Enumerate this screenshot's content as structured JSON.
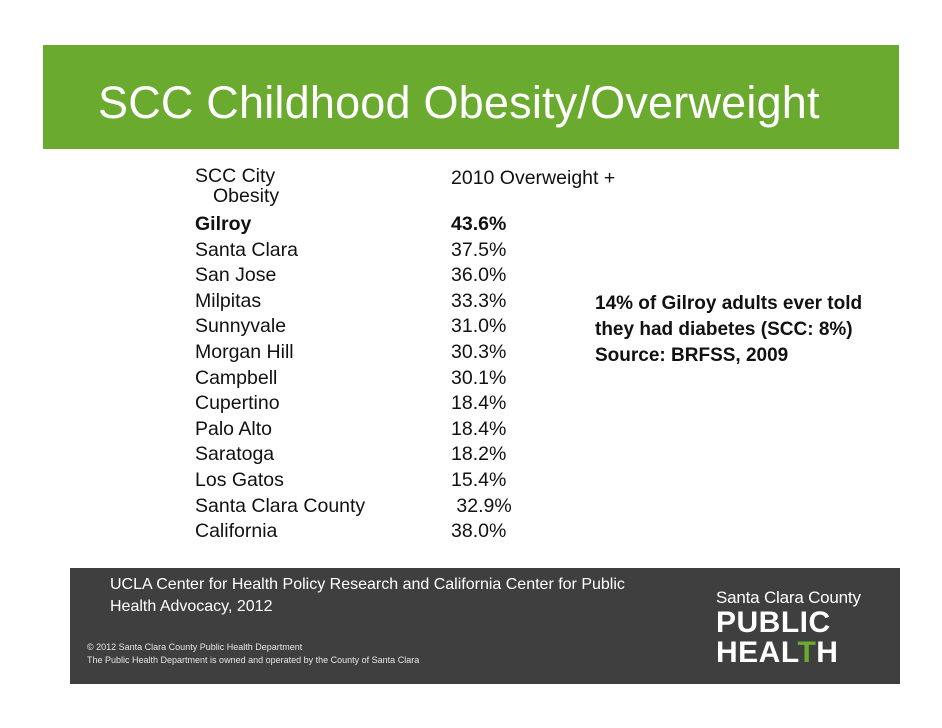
{
  "title": "SCC Childhood Obesity/Overweight",
  "table": {
    "header_city_line1": "SCC City",
    "header_city_line2": "Obesity",
    "header_value": "2010 Overweight +",
    "rows": [
      {
        "city": "Gilroy",
        "value": "43.6%"
      },
      {
        "city": "Santa Clara",
        "value": "37.5%"
      },
      {
        "city": "San Jose",
        "value": "36.0%"
      },
      {
        "city": "Milpitas",
        "value": "33.3%"
      },
      {
        "city": "Sunnyvale",
        "value": "31.0%"
      },
      {
        "city": "Morgan Hill",
        "value": "30.3%"
      },
      {
        "city": "Campbell",
        "value": "30.1%"
      },
      {
        "city": "Cupertino",
        "value": "18.4%"
      },
      {
        "city": "Palo Alto",
        "value": "18.4%"
      },
      {
        "city": "Saratoga",
        "value": "18.2%"
      },
      {
        "city": "Los Gatos",
        "value": "15.4%"
      },
      {
        "city": "Santa Clara County",
        "value": " 32.9%"
      },
      {
        "city": "California",
        "value": "38.0%"
      }
    ]
  },
  "note": "14% of Gilroy adults ever told they had diabetes (SCC: 8%)  Source: BRFSS, 2009",
  "footer": {
    "source": "UCLA Center for Health Policy Research and California Center for Public Health Advocacy, 2012",
    "copyright_line1": "© 2012 Santa Clara County Public Health Department",
    "copyright_line2": "The Public Health Department is owned and operated by the County of Santa Clara",
    "logo_top": "Santa Clara County",
    "logo_line2": "PUBLIC",
    "logo_line3_a": "HEAL",
    "logo_line3_b": "T",
    "logo_line3_c": "H"
  },
  "colors": {
    "brand_green": "#6aaa2f",
    "footer_gray": "#3f3f3f"
  }
}
